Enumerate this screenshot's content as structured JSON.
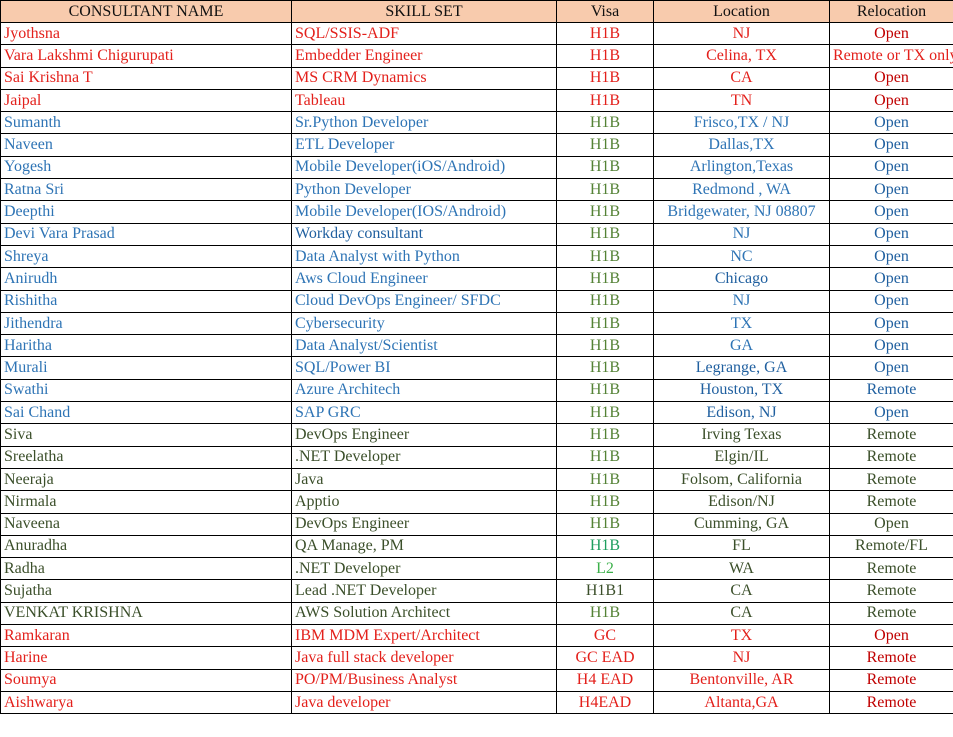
{
  "headers": [
    "CONSULTANT NAME",
    "SKILL SET",
    "Visa",
    "Location",
    "Relocation"
  ],
  "colors": {
    "R": "#e3201b",
    "DR": "#c00000",
    "B": "#2e74b5",
    "BD": "#1f5f9f",
    "G": "#548235",
    "D": "#3b4f2a",
    "T": "#1e9e5e",
    "L": "#3cb04a",
    "header_bg": "#f8cbad"
  },
  "rows": [
    {
      "cells": [
        "Jyothsna",
        "SQL/SSIS-ADF",
        "H1B",
        "NJ",
        "Open"
      ],
      "colors": [
        "R",
        "R",
        "R",
        "R",
        "DR"
      ]
    },
    {
      "cells": [
        "Vara Lakshmi Chigurupati",
        "Embedder Engineer",
        "H1B",
        "Celina, TX",
        "Remote or TX only"
      ],
      "colors": [
        "R",
        "R",
        "R",
        "R",
        "R"
      ]
    },
    {
      "cells": [
        "Sai Krishna T",
        "MS CRM Dynamics",
        "H1B",
        "CA",
        "Open"
      ],
      "colors": [
        "R",
        "R",
        "R",
        "R",
        "DR"
      ]
    },
    {
      "cells": [
        "Jaipal",
        "Tableau",
        "H1B",
        "TN",
        "Open"
      ],
      "colors": [
        "R",
        "R",
        "R",
        "R",
        "DR"
      ]
    },
    {
      "cells": [
        "Sumanth",
        "Sr.Python Developer",
        "H1B",
        "Frisco,TX / NJ",
        "Open"
      ],
      "colors": [
        "B",
        "B",
        "G",
        "B",
        "BD"
      ]
    },
    {
      "cells": [
        "Naveen",
        "ETL Developer",
        "H1B",
        "Dallas,TX",
        "Open"
      ],
      "colors": [
        "B",
        "B",
        "G",
        "B",
        "BD"
      ]
    },
    {
      "cells": [
        "Yogesh",
        "Mobile Developer(iOS/Android)",
        "H1B",
        "Arlington,Texas",
        "Open"
      ],
      "colors": [
        "B",
        "B",
        "G",
        "B",
        "BD"
      ]
    },
    {
      "cells": [
        "Ratna Sri",
        "Python Developer",
        "H1B",
        "Redmond , WA",
        "Open"
      ],
      "colors": [
        "B",
        "B",
        "G",
        "B",
        "BD"
      ]
    },
    {
      "cells": [
        "Deepthi",
        "Mobile Developer(IOS/Android)",
        "H1B",
        "Bridgewater, NJ 08807",
        "Open"
      ],
      "colors": [
        "B",
        "B",
        "G",
        "B",
        "BD"
      ]
    },
    {
      "cells": [
        "Devi Vara Prasad",
        "Workday consultant",
        "H1B",
        "NJ",
        "Open"
      ],
      "colors": [
        "B",
        "BD",
        "G",
        "B",
        "BD"
      ]
    },
    {
      "cells": [
        "Shreya",
        "Data Analyst with Python",
        "H1B",
        "NC",
        "Open"
      ],
      "colors": [
        "B",
        "B",
        "G",
        "B",
        "BD"
      ]
    },
    {
      "cells": [
        "Anirudh",
        "Aws Cloud Engineer",
        "H1B",
        "Chicago",
        "Open"
      ],
      "colors": [
        "B",
        "B",
        "G",
        "BD",
        "BD"
      ]
    },
    {
      "cells": [
        "Rishitha",
        "Cloud DevOps Engineer/ SFDC",
        "H1B",
        "NJ",
        "Open"
      ],
      "colors": [
        "B",
        "B",
        "G",
        "B",
        "BD"
      ]
    },
    {
      "cells": [
        "Jithendra",
        "Cybersecurity",
        "H1B",
        "TX",
        "Open"
      ],
      "colors": [
        "B",
        "B",
        "G",
        "B",
        "BD"
      ]
    },
    {
      "cells": [
        "Haritha",
        "Data Analyst/Scientist",
        "H1B",
        "GA",
        "Open"
      ],
      "colors": [
        "B",
        "B",
        "G",
        "B",
        "BD"
      ]
    },
    {
      "cells": [
        "Murali",
        "SQL/Power BI",
        "H1B",
        "Legrange, GA",
        "Open"
      ],
      "colors": [
        "B",
        "B",
        "G",
        "BD",
        "BD"
      ]
    },
    {
      "cells": [
        "Swathi",
        "Azure Architech",
        "H1B",
        "Houston, TX",
        "Remote"
      ],
      "colors": [
        "B",
        "B",
        "G",
        "BD",
        "BD"
      ]
    },
    {
      "cells": [
        "Sai Chand",
        "SAP GRC",
        "H1B",
        "Edison, NJ",
        "Open"
      ],
      "colors": [
        "B",
        "B",
        "G",
        "BD",
        "BD"
      ]
    },
    {
      "cells": [
        "Siva",
        "DevOps Engineer",
        "H1B",
        "Irving Texas",
        "Remote"
      ],
      "colors": [
        "D",
        "D",
        "G",
        "D",
        "D"
      ]
    },
    {
      "cells": [
        "Sreelatha",
        ".NET Developer",
        "H1B",
        "Elgin/IL",
        "Remote"
      ],
      "colors": [
        "D",
        "D",
        "G",
        "D",
        "D"
      ]
    },
    {
      "cells": [
        "Neeraja",
        "Java",
        "H1B",
        "Folsom, California",
        "Remote"
      ],
      "colors": [
        "D",
        "D",
        "G",
        "D",
        "D"
      ]
    },
    {
      "cells": [
        "Nirmala",
        "Apptio",
        "H1B",
        "Edison/NJ",
        "Remote"
      ],
      "colors": [
        "D",
        "D",
        "G",
        "D",
        "D"
      ]
    },
    {
      "cells": [
        "Naveena",
        "DevOps Engineer",
        "H1B",
        "Cumming, GA",
        "Open"
      ],
      "colors": [
        "D",
        "D",
        "G",
        "D",
        "D"
      ]
    },
    {
      "cells": [
        "Anuradha",
        "QA Manage, PM",
        "H1B",
        "FL",
        "Remote/FL"
      ],
      "colors": [
        "D",
        "D",
        "T",
        "D",
        "D"
      ]
    },
    {
      "cells": [
        "Radha",
        ".NET Developer",
        "L2",
        "WA",
        "Remote"
      ],
      "colors": [
        "D",
        "D",
        "L",
        "D",
        "D"
      ]
    },
    {
      "cells": [
        "Sujatha",
        "Lead .NET Developer",
        "H1B1",
        "CA",
        "Remote"
      ],
      "colors": [
        "D",
        "D",
        "D",
        "D",
        "D"
      ]
    },
    {
      "cells": [
        "VENKAT KRISHNA",
        "AWS Solution Architect",
        "H1B",
        "CA",
        "Remote"
      ],
      "colors": [
        "D",
        "D",
        "G",
        "D",
        "D"
      ]
    },
    {
      "cells": [
        "Ramkaran",
        "IBM MDM Expert/Architect",
        "GC",
        "TX",
        "Open"
      ],
      "colors": [
        "R",
        "R",
        "R",
        "R",
        "DR"
      ]
    },
    {
      "cells": [
        "Harine",
        "Java full stack developer",
        "GC EAD",
        "NJ",
        "Remote"
      ],
      "colors": [
        "R",
        "R",
        "R",
        "R",
        "DR"
      ]
    },
    {
      "cells": [
        "Soumya",
        "PO/PM/Business Analyst",
        "H4 EAD",
        "Bentonville, AR",
        "Remote"
      ],
      "colors": [
        "R",
        "R",
        "R",
        "R",
        "DR"
      ]
    },
    {
      "cells": [
        "Aishwarya",
        "Java developer",
        "H4EAD",
        "Altanta,GA",
        "Remote"
      ],
      "colors": [
        "R",
        "R",
        "R",
        "R",
        "DR"
      ]
    }
  ]
}
